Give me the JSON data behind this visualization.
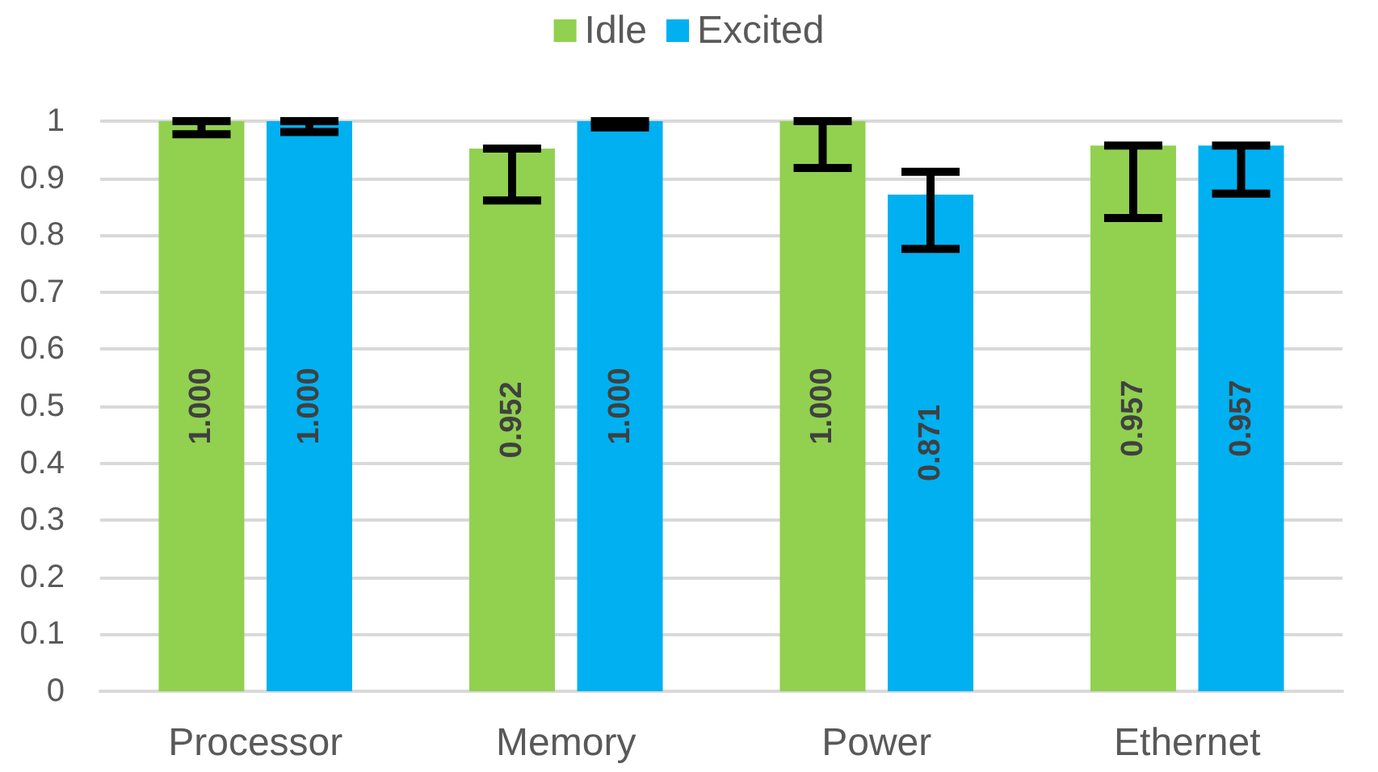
{
  "chart_data": {
    "type": "bar",
    "categories": [
      "Processor",
      "Memory",
      "Power",
      "Ethernet"
    ],
    "series": [
      {
        "name": "Idle",
        "color": "#92d050",
        "values": [
          1.0,
          0.952,
          1.0,
          0.957
        ],
        "value_labels": [
          "1.000",
          "0.952",
          "1.000",
          "0.957"
        ],
        "errors": [
          [
            0.977,
            1.0
          ],
          [
            0.861,
            0.952
          ],
          [
            0.918,
            1.0
          ],
          [
            0.83,
            0.957
          ]
        ]
      },
      {
        "name": "Excited",
        "color": "#00b0f0",
        "values": [
          1.0,
          1.0,
          0.871,
          0.957
        ],
        "value_labels": [
          "1.000",
          "1.000",
          "0.871",
          "0.957"
        ],
        "errors": [
          [
            0.981,
            1.0
          ],
          [
            0.989,
            1.0
          ],
          [
            0.776,
            0.911
          ],
          [
            0.873,
            0.957
          ]
        ]
      }
    ],
    "ylim": [
      0,
      1
    ],
    "yticks": [
      0,
      0.1,
      0.2,
      0.3,
      0.4,
      0.5,
      0.6,
      0.7,
      0.8,
      0.9,
      1
    ],
    "grid": "y",
    "legend": "top"
  }
}
